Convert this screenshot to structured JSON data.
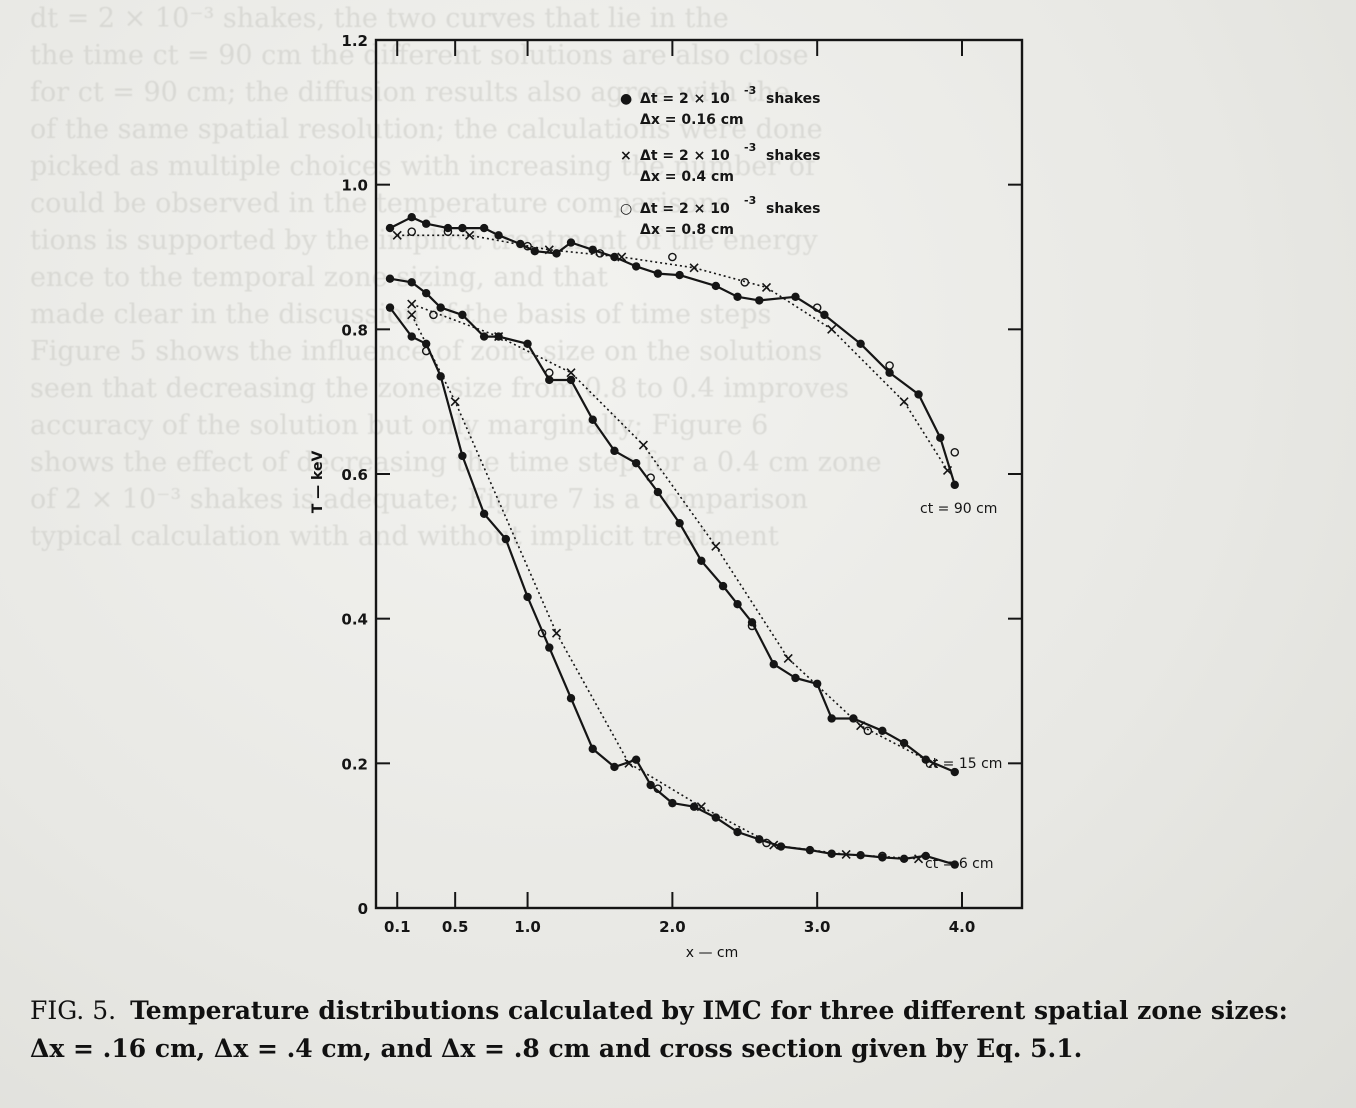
{
  "chart_data": {
    "type": "line",
    "xlabel": "x — cm",
    "ylabel": "T — keV",
    "xlim": [
      0,
      4.25
    ],
    "ylim": [
      0,
      1.2
    ],
    "x_ticks": [
      "0.1",
      "0.5",
      "1.0",
      "2.0",
      "3.0",
      "4.0"
    ],
    "x_tick_values": [
      0.1,
      0.5,
      1.0,
      2.0,
      3.0,
      4.0
    ],
    "y_ticks": [
      "0",
      "0.2",
      "0.4",
      "0.6",
      "0.8",
      "1.0",
      "1.2"
    ],
    "y_tick_values": [
      0,
      0.2,
      0.4,
      0.6,
      0.8,
      1.0,
      1.2
    ],
    "y_zero_label": "0",
    "legend": [
      {
        "marker": "●",
        "dt": "Δt = 2 × 10",
        "exp": "-3",
        "unit": "shakes",
        "dx": "Δx = 0.16 cm"
      },
      {
        "marker": "×",
        "dt": "Δt = 2 × 10",
        "exp": "-3",
        "unit": "shakes",
        "dx": "Δx = 0.4 cm"
      },
      {
        "marker": "○",
        "dt": "Δt = 2 × 10",
        "exp": "-3",
        "unit": "shakes",
        "dx": "Δx = 0.8 cm"
      }
    ],
    "legend_position": "top-right",
    "curve_labels": [
      "ct = 90 cm",
      "ct = 15 cm",
      "ct = 6 cm"
    ],
    "curves": [
      {
        "label": "ct = 90 cm",
        "dots": [
          [
            0.05,
            0.94
          ],
          [
            0.2,
            0.955
          ],
          [
            0.3,
            0.946
          ],
          [
            0.45,
            0.94
          ],
          [
            0.55,
            0.94
          ],
          [
            0.7,
            0.94
          ],
          [
            0.8,
            0.93
          ],
          [
            0.95,
            0.918
          ],
          [
            1.05,
            0.908
          ],
          [
            1.2,
            0.905
          ],
          [
            1.3,
            0.92
          ],
          [
            1.45,
            0.91
          ],
          [
            1.6,
            0.9
          ],
          [
            1.75,
            0.887
          ],
          [
            1.9,
            0.877
          ],
          [
            2.05,
            0.875
          ],
          [
            2.3,
            0.86
          ],
          [
            2.45,
            0.845
          ],
          [
            2.6,
            0.84
          ],
          [
            2.85,
            0.845
          ],
          [
            3.05,
            0.82
          ],
          [
            3.3,
            0.78
          ],
          [
            3.5,
            0.74
          ],
          [
            3.7,
            0.71
          ],
          [
            3.85,
            0.65
          ],
          [
            3.95,
            0.585
          ]
        ],
        "crosses": [
          [
            0.1,
            0.93
          ],
          [
            0.6,
            0.93
          ],
          [
            1.15,
            0.91
          ],
          [
            1.65,
            0.9
          ],
          [
            2.15,
            0.885
          ],
          [
            2.65,
            0.858
          ],
          [
            3.1,
            0.8
          ],
          [
            3.6,
            0.7
          ],
          [
            3.9,
            0.605
          ]
        ],
        "circles": [
          [
            0.2,
            0.935
          ],
          [
            0.45,
            0.935
          ],
          [
            1.0,
            0.915
          ],
          [
            1.5,
            0.905
          ],
          [
            2.0,
            0.9
          ],
          [
            2.5,
            0.865
          ],
          [
            3.0,
            0.83
          ],
          [
            3.5,
            0.75
          ],
          [
            3.95,
            0.63
          ]
        ]
      },
      {
        "label": "ct = 15 cm",
        "dots": [
          [
            0.05,
            0.87
          ],
          [
            0.2,
            0.865
          ],
          [
            0.3,
            0.85
          ],
          [
            0.4,
            0.83
          ],
          [
            0.55,
            0.82
          ],
          [
            0.7,
            0.79
          ],
          [
            0.8,
            0.79
          ],
          [
            1.0,
            0.78
          ],
          [
            1.15,
            0.73
          ],
          [
            1.3,
            0.73
          ],
          [
            1.45,
            0.675
          ],
          [
            1.6,
            0.632
          ],
          [
            1.75,
            0.615
          ],
          [
            1.9,
            0.575
          ],
          [
            2.05,
            0.532
          ],
          [
            2.2,
            0.48
          ],
          [
            2.35,
            0.445
          ],
          [
            2.45,
            0.42
          ],
          [
            2.55,
            0.395
          ],
          [
            2.7,
            0.337
          ],
          [
            2.85,
            0.318
          ],
          [
            3.0,
            0.31
          ],
          [
            3.1,
            0.262
          ],
          [
            3.25,
            0.262
          ],
          [
            3.45,
            0.245
          ],
          [
            3.6,
            0.228
          ],
          [
            3.75,
            0.205
          ],
          [
            3.95,
            0.188
          ]
        ],
        "crosses": [
          [
            0.2,
            0.835
          ],
          [
            0.8,
            0.79
          ],
          [
            1.3,
            0.74
          ],
          [
            1.8,
            0.64
          ],
          [
            2.3,
            0.5
          ],
          [
            2.8,
            0.345
          ],
          [
            3.3,
            0.252
          ],
          [
            3.8,
            0.2
          ]
        ],
        "circles": [
          [
            0.35,
            0.82
          ],
          [
            1.15,
            0.74
          ],
          [
            1.85,
            0.595
          ],
          [
            2.55,
            0.39
          ],
          [
            3.35,
            0.245
          ]
        ]
      },
      {
        "label": "ct = 6 cm",
        "dots": [
          [
            0.05,
            0.83
          ],
          [
            0.2,
            0.79
          ],
          [
            0.3,
            0.78
          ],
          [
            0.4,
            0.735
          ],
          [
            0.55,
            0.625
          ],
          [
            0.7,
            0.545
          ],
          [
            0.85,
            0.51
          ],
          [
            1.0,
            0.43
          ],
          [
            1.15,
            0.36
          ],
          [
            1.3,
            0.29
          ],
          [
            1.45,
            0.22
          ],
          [
            1.6,
            0.195
          ],
          [
            1.75,
            0.205
          ],
          [
            1.85,
            0.17
          ],
          [
            2.0,
            0.145
          ],
          [
            2.15,
            0.14
          ],
          [
            2.3,
            0.125
          ],
          [
            2.45,
            0.105
          ],
          [
            2.6,
            0.095
          ],
          [
            2.75,
            0.085
          ],
          [
            2.95,
            0.08
          ],
          [
            3.1,
            0.075
          ],
          [
            3.3,
            0.073
          ],
          [
            3.45,
            0.07
          ],
          [
            3.6,
            0.068
          ],
          [
            3.75,
            0.072
          ],
          [
            3.95,
            0.06
          ]
        ],
        "crosses": [
          [
            0.2,
            0.82
          ],
          [
            0.5,
            0.7
          ],
          [
            1.2,
            0.38
          ],
          [
            1.7,
            0.2
          ],
          [
            2.2,
            0.14
          ],
          [
            2.7,
            0.087
          ],
          [
            3.2,
            0.074
          ],
          [
            3.7,
            0.068
          ]
        ],
        "circles": [
          [
            0.3,
            0.77
          ],
          [
            1.1,
            0.38
          ],
          [
            1.9,
            0.165
          ],
          [
            2.65,
            0.09
          ],
          [
            3.45,
            0.072
          ]
        ]
      }
    ]
  },
  "caption": {
    "fig": "FIG. 5.",
    "text": "Temperature distributions calculated by IMC for three different spatial zone sizes: Δx = .16 cm, Δx = .4 cm, and Δx = .8 cm and cross section given by Eq. 5.1."
  }
}
